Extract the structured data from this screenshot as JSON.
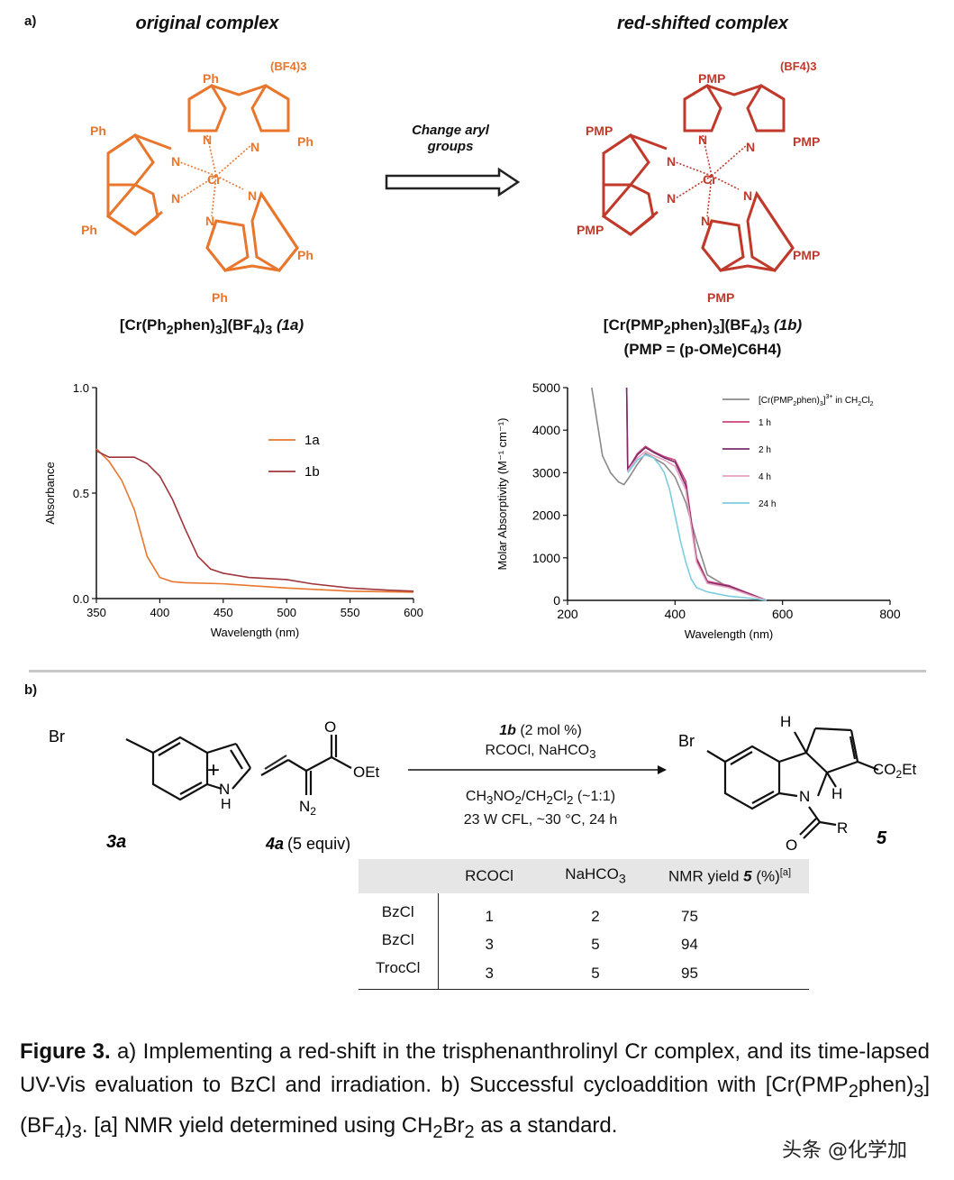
{
  "panel_a_label": "a)",
  "panel_b_label": "b)",
  "complex_left": {
    "title": "original complex",
    "formula_main": "[Cr(Ph",
    "formula_rest": "phen)",
    "formula_tail": "](BF",
    "formula_end": ")",
    "formula_id": "(1a)",
    "sub2": "2",
    "sub3": "3",
    "sub4": "4",
    "sub3b": "3",
    "substituent": "Ph",
    "counterion": "(BF4)3",
    "color": "#e8762d"
  },
  "complex_right": {
    "title": "red-shifted complex",
    "formula_main": "[Cr(PMP",
    "formula_rest": "phen)",
    "formula_tail": "](BF",
    "formula_end": ")",
    "formula_id": "(1b)",
    "sub2": "2",
    "sub3": "3",
    "sub4": "4",
    "sub3b": "3",
    "pmp_def": "(PMP = (p-OMe)C6H4)",
    "substituent": "PMP",
    "counterion": "(BF4)3",
    "color": "#c0392b"
  },
  "arrow_label_line1": "Change aryl",
  "arrow_label_line2": "groups",
  "atoms": {
    "N": "N",
    "Cr": "Cr"
  },
  "chart_data": [
    {
      "type": "line",
      "xlabel": "Wavelength (nm)",
      "ylabel": "Absorbance",
      "xlim": [
        350,
        600
      ],
      "ylim": [
        0.0,
        1.0
      ],
      "xticks": [
        "350",
        "400",
        "450",
        "500",
        "550",
        "600"
      ],
      "yticks": [
        "0.0",
        "0.5",
        "1.0"
      ],
      "legend_position": "top-right",
      "series": [
        {
          "name": "1a",
          "color": "#e8762d",
          "x": [
            350,
            360,
            370,
            380,
            390,
            400,
            410,
            420,
            450,
            500,
            550,
            600
          ],
          "y": [
            0.71,
            0.65,
            0.56,
            0.42,
            0.2,
            0.1,
            0.08,
            0.075,
            0.07,
            0.05,
            0.035,
            0.03
          ]
        },
        {
          "name": "1b",
          "color": "#a0353a",
          "x": [
            350,
            360,
            370,
            380,
            390,
            400,
            410,
            420,
            430,
            440,
            450,
            470,
            500,
            520,
            550,
            580,
            600
          ],
          "y": [
            0.7,
            0.67,
            0.67,
            0.67,
            0.64,
            0.58,
            0.47,
            0.33,
            0.2,
            0.14,
            0.12,
            0.1,
            0.09,
            0.07,
            0.05,
            0.04,
            0.035
          ]
        }
      ]
    },
    {
      "type": "line",
      "xlabel": "Wavelength (nm)",
      "ylabel": "Molar Absorptivity (M⁻¹ cm⁻¹)",
      "xlim": [
        200,
        800
      ],
      "ylim": [
        0,
        5000
      ],
      "xticks": [
        "200",
        "400",
        "600",
        "800"
      ],
      "yticks": [
        "0",
        "1000",
        "2000",
        "3000",
        "4000",
        "5000"
      ],
      "legend_position": "top-right",
      "legend_title_main": "[Cr(PMP",
      "legend_title_rest": "phen)",
      "legend_title_tail": "]",
      "legend_title_end": " in CH",
      "legend_title_cl": "Cl",
      "sub2": "2",
      "sub3": "3",
      "sup3": "3+",
      "series": [
        {
          "name": "[Cr(PMP2phen)3]3+ in CH2Cl2",
          "color": "#8a8a8a",
          "x": [
            245,
            255,
            265,
            280,
            295,
            305,
            315,
            330,
            345,
            360,
            380,
            400,
            420,
            440,
            460,
            500,
            540,
            570
          ],
          "y": [
            5000,
            4200,
            3400,
            3000,
            2780,
            2720,
            2900,
            3200,
            3450,
            3350,
            3200,
            2900,
            2300,
            1400,
            600,
            300,
            150,
            0
          ]
        },
        {
          "name": "1 h",
          "color": "#c8447a",
          "x": [
            310,
            312,
            318,
            330,
            345,
            360,
            380,
            400,
            420,
            440,
            460,
            500,
            540,
            570
          ],
          "y": [
            5000,
            3100,
            3200,
            3450,
            3620,
            3500,
            3380,
            3300,
            2800,
            1000,
            450,
            350,
            150,
            0
          ]
        },
        {
          "name": "2 h",
          "color": "#7a2d6a",
          "x": [
            310,
            312,
            318,
            330,
            345,
            360,
            380,
            400,
            420,
            440,
            460,
            500,
            540,
            570
          ],
          "y": [
            5000,
            3080,
            3180,
            3420,
            3590,
            3480,
            3350,
            3250,
            2700,
            950,
            420,
            330,
            140,
            0
          ]
        },
        {
          "name": "4 h",
          "color": "#e8a0c0",
          "x": [
            312,
            318,
            330,
            345,
            360,
            380,
            400,
            420,
            440,
            460,
            500,
            540,
            570
          ],
          "y": [
            3050,
            3150,
            3350,
            3500,
            3400,
            3300,
            3150,
            2600,
            900,
            400,
            300,
            120,
            0
          ]
        },
        {
          "name": "24 h",
          "color": "#7ccde0",
          "x": [
            312,
            318,
            330,
            345,
            360,
            370,
            380,
            390,
            400,
            410,
            420,
            430,
            440,
            460,
            500,
            540,
            570
          ],
          "y": [
            3000,
            3100,
            3300,
            3420,
            3350,
            3200,
            3000,
            2600,
            2000,
            1400,
            900,
            500,
            300,
            200,
            100,
            50,
            0
          ]
        }
      ]
    }
  ],
  "reaction": {
    "indole_br": "Br",
    "indole_nh": "N",
    "indole_h": "H",
    "indole_label": "3a",
    "plus": "+",
    "diazo_o": "O",
    "diazo_oet": "OEt",
    "diazo_n2": "N",
    "diazo_n2_sub": "2",
    "diazo_label": "4a",
    "diazo_equiv": "(5 equiv)",
    "cond_line1_bold": "1b",
    "cond_line1": " (2 mol %)",
    "cond_line2_a": "RCOCl, NaHCO",
    "cond_line2_sub": "3",
    "cond_line3_a": "CH",
    "cond_line3_b": "NO",
    "cond_line3_c": "/CH",
    "cond_line3_d": "Cl",
    "cond_line3_e": " (~1:1)",
    "cond_line3_s3": "3",
    "cond_line3_s2a": "2",
    "cond_line3_s2b": "2",
    "cond_line3_s2c": "2",
    "cond_line4": "23 W CFL, ~30 °C, 24 h",
    "product_br": "Br",
    "product_h_top": "H",
    "product_h_mid": "H",
    "product_n": "N",
    "product_co2et_a": "CO",
    "product_co2et_sub": "2",
    "product_co2et_b": "Et",
    "product_o": "O",
    "product_r": "R",
    "product_label": "5"
  },
  "table": {
    "headers": [
      "",
      "RCOCl",
      "NaHCO",
      "NMR yield "
    ],
    "header_sub": "3",
    "header_bold_5": "5",
    "header_tail": " (%)",
    "header_sup": "[a]",
    "rows": [
      [
        "BzCl",
        "1",
        "2",
        "75"
      ],
      [
        "BzCl",
        "3",
        "5",
        "94"
      ],
      [
        "TrocCl",
        "3",
        "5",
        "95"
      ]
    ]
  },
  "caption": {
    "label": "Figure 3.",
    "text1": " a) Implementing a red-shift in the trisphenanthrolinyl Cr complex, and its time-lapsed UV-Vis evaluation to BzCl and irradiation. b) Successful cycloaddition with [Cr(PMP",
    "sub_2": "2",
    "text2": "phen)",
    "sub_3": "3",
    "text3": "](BF",
    "sub_4": "4",
    "text4": ")",
    "sub_3b": "3",
    "text5": ". [a] NMR yield determined using CH",
    "sub_2b": "2",
    "text6": "Br",
    "sub_2c": "2",
    "text7": " as a standard."
  },
  "watermark": "头条 @化学加"
}
